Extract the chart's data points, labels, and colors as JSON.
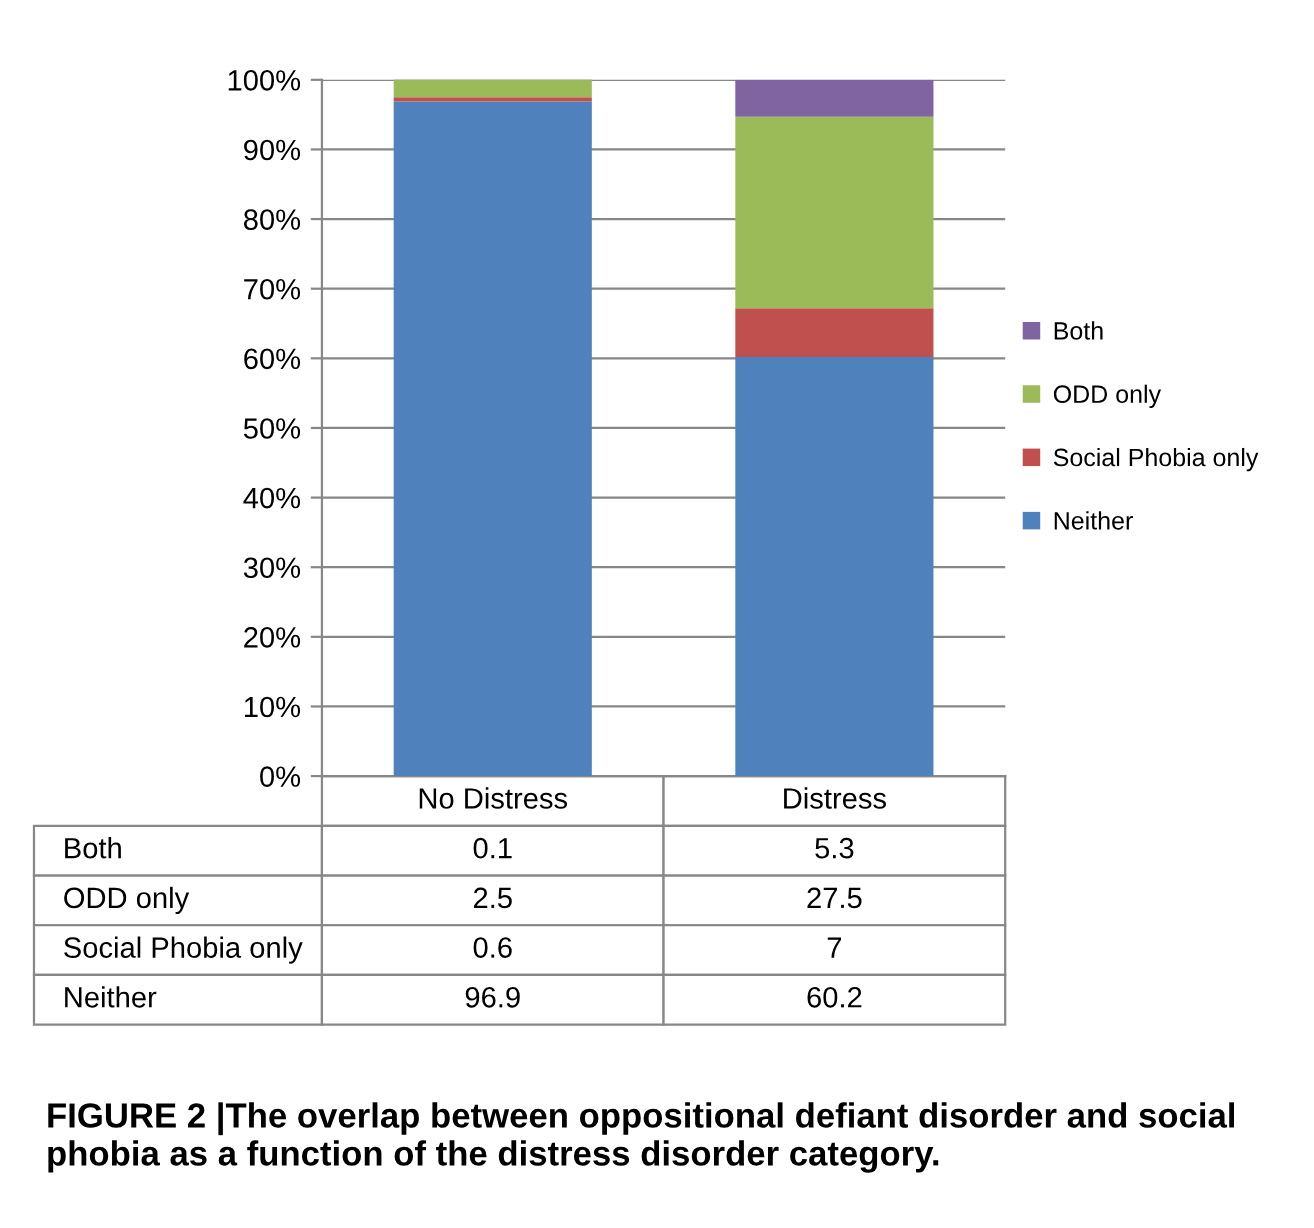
{
  "chart_data": {
    "type": "bar",
    "stacked": true,
    "categories": [
      "No Distress",
      "Distress"
    ],
    "series": [
      {
        "name": "Neither",
        "color": "#4f81bd",
        "values": [
          96.9,
          60.2
        ]
      },
      {
        "name": "Social Phobia only",
        "color": "#c0504d",
        "values": [
          0.6,
          7
        ]
      },
      {
        "name": "ODD only",
        "color": "#9bbb59",
        "values": [
          2.5,
          27.5
        ]
      },
      {
        "name": "Both",
        "color": "#8064a2",
        "values": [
          0.1,
          5.3
        ]
      }
    ],
    "ylim": [
      0,
      100
    ],
    "yticks": [
      {
        "value": 0,
        "label": "0%"
      },
      {
        "value": 10,
        "label": "10%"
      },
      {
        "value": 20,
        "label": "20%"
      },
      {
        "value": 30,
        "label": "30%"
      },
      {
        "value": 40,
        "label": "40%"
      },
      {
        "value": 50,
        "label": "50%"
      },
      {
        "value": 60,
        "label": "60%"
      },
      {
        "value": 70,
        "label": "70%"
      },
      {
        "value": 80,
        "label": "80%"
      },
      {
        "value": 90,
        "label": "90%"
      },
      {
        "value": 100,
        "label": "100%"
      }
    ],
    "grid": "y",
    "legend": "right",
    "data_labels": true,
    "annotations": [
      "FIGURE 2 |The overlap between oppositional defiant disorder and social phobia as a function of the distress disorder category."
    ]
  }
}
